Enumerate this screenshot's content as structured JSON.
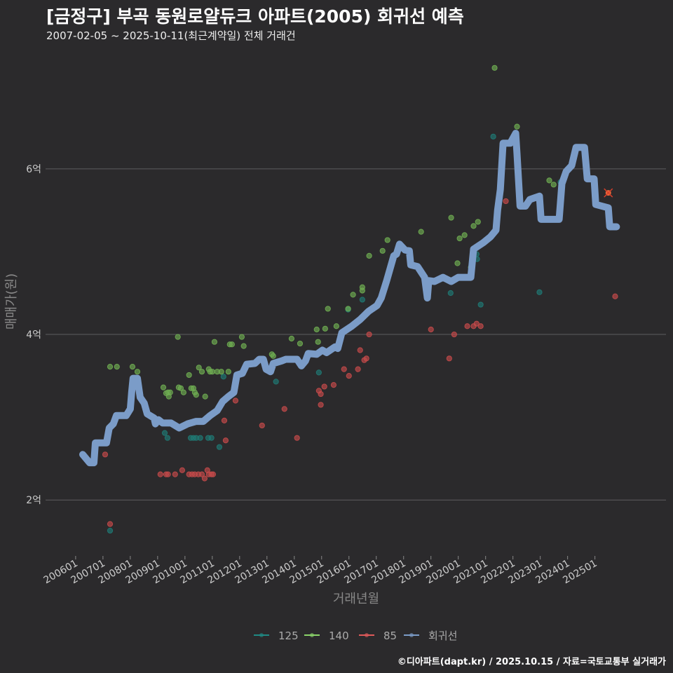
{
  "header": {
    "title": "[금정구] 부곡 동원로얄듀크 아파트(2005) 회귀선 예측",
    "subtitle": "2007-02-05 ~ 2025-10-11(최근계약일) 전체 거래건"
  },
  "caption": "©디아파트(dapt.kr) / 2025.10.15 / 자료=국토교통부 실거래가",
  "chart_data": {
    "type": "scatter",
    "xlabel": "거래년월",
    "ylabel": "매매가(원)",
    "xlim": [
      2004.9,
      2027.6
    ],
    "ylim": [
      1.35,
      7.32
    ],
    "x_ticks": [
      {
        "v": 2006,
        "label": "200601"
      },
      {
        "v": 2007,
        "label": "200701"
      },
      {
        "v": 2008,
        "label": "200801"
      },
      {
        "v": 2009,
        "label": "200901"
      },
      {
        "v": 2010,
        "label": "201001"
      },
      {
        "v": 2011,
        "label": "201101"
      },
      {
        "v": 2012,
        "label": "201201"
      },
      {
        "v": 2013,
        "label": "201301"
      },
      {
        "v": 2014,
        "label": "201401"
      },
      {
        "v": 2015,
        "label": "201501"
      },
      {
        "v": 2016,
        "label": "201601"
      },
      {
        "v": 2017,
        "label": "201701"
      },
      {
        "v": 2018,
        "label": "201801"
      },
      {
        "v": 2019,
        "label": "201901"
      },
      {
        "v": 2020,
        "label": "202001"
      },
      {
        "v": 2021,
        "label": "202101"
      },
      {
        "v": 2022,
        "label": "202201"
      },
      {
        "v": 2023,
        "label": "202301"
      },
      {
        "v": 2024,
        "label": "202401"
      },
      {
        "v": 2025,
        "label": "202501"
      }
    ],
    "y_ticks": [
      {
        "v": 2,
        "label": "2억"
      },
      {
        "v": 4,
        "label": "4억"
      },
      {
        "v": 6,
        "label": "6억"
      }
    ],
    "legend": {
      "placement": "bottom",
      "items": [
        {
          "label": "125",
          "color": "#1f8a84"
        },
        {
          "label": "140",
          "color": "#8bd46a"
        },
        {
          "label": "85",
          "color": "#e05a5a"
        },
        {
          "label": "회귀선",
          "color": "#7b9cc8"
        }
      ]
    },
    "series": [
      {
        "name": "125",
        "color": "#1f7a74",
        "points": [
          [
            2007.26,
            1.63
          ],
          [
            2009.26,
            2.81
          ],
          [
            2009.36,
            2.75
          ],
          [
            2010.21,
            2.75
          ],
          [
            2010.31,
            2.75
          ],
          [
            2010.41,
            2.75
          ],
          [
            2010.56,
            2.75
          ],
          [
            2010.85,
            2.75
          ],
          [
            2010.97,
            2.75
          ],
          [
            2011.26,
            2.64
          ],
          [
            2011.41,
            3.49
          ],
          [
            2013.33,
            3.43
          ],
          [
            2014.9,
            3.54
          ],
          [
            2015.97,
            4.3
          ],
          [
            2016.49,
            4.42
          ],
          [
            2019.72,
            4.5
          ],
          [
            2020.67,
            4.97
          ],
          [
            2020.69,
            4.91
          ],
          [
            2020.82,
            4.36
          ],
          [
            2021.28,
            6.39
          ],
          [
            2022.97,
            4.51
          ],
          [
            2023.74,
            5.84
          ]
        ]
      },
      {
        "name": "140",
        "color": "#6fae52",
        "points": [
          [
            2007.26,
            3.61
          ],
          [
            2007.51,
            3.61
          ],
          [
            2008.08,
            3.61
          ],
          [
            2008.26,
            3.55
          ],
          [
            2009.74,
            3.97
          ],
          [
            2009.21,
            3.36
          ],
          [
            2009.31,
            3.29
          ],
          [
            2009.38,
            3.3
          ],
          [
            2009.46,
            3.3
          ],
          [
            2009.41,
            3.25
          ],
          [
            2009.77,
            3.36
          ],
          [
            2009.85,
            3.35
          ],
          [
            2009.95,
            3.3
          ],
          [
            2010.15,
            3.51
          ],
          [
            2010.23,
            3.35
          ],
          [
            2010.31,
            3.35
          ],
          [
            2010.36,
            3.3
          ],
          [
            2010.41,
            3.27
          ],
          [
            2010.51,
            3.6
          ],
          [
            2010.62,
            3.55
          ],
          [
            2010.74,
            3.25
          ],
          [
            2010.87,
            3.58
          ],
          [
            2010.92,
            3.55
          ],
          [
            2011.0,
            3.55
          ],
          [
            2011.08,
            3.91
          ],
          [
            2011.18,
            3.55
          ],
          [
            2011.33,
            3.55
          ],
          [
            2011.59,
            3.55
          ],
          [
            2011.64,
            3.88
          ],
          [
            2011.72,
            3.88
          ],
          [
            2012.08,
            3.97
          ],
          [
            2012.15,
            3.86
          ],
          [
            2013.18,
            3.76
          ],
          [
            2013.23,
            3.74
          ],
          [
            2013.9,
            3.95
          ],
          [
            2014.21,
            3.89
          ],
          [
            2014.82,
            4.06
          ],
          [
            2014.87,
            3.91
          ],
          [
            2015.13,
            4.07
          ],
          [
            2015.23,
            4.31
          ],
          [
            2015.54,
            4.1
          ],
          [
            2015.97,
            4.31
          ],
          [
            2016.15,
            4.48
          ],
          [
            2016.49,
            4.57
          ],
          [
            2016.49,
            4.53
          ],
          [
            2016.74,
            4.95
          ],
          [
            2017.23,
            5.01
          ],
          [
            2017.41,
            5.14
          ],
          [
            2018.64,
            5.24
          ],
          [
            2019.74,
            5.41
          ],
          [
            2019.97,
            4.86
          ],
          [
            2020.05,
            5.16
          ],
          [
            2020.23,
            5.2
          ],
          [
            2020.46,
            4.81
          ],
          [
            2020.56,
            5.31
          ],
          [
            2020.72,
            5.36
          ],
          [
            2021.33,
            7.22
          ],
          [
            2022.15,
            6.51
          ],
          [
            2023.33,
            5.86
          ],
          [
            2023.49,
            5.81
          ]
        ]
      },
      {
        "name": "85",
        "color": "#c44a4a",
        "points": [
          [
            2007.08,
            2.55
          ],
          [
            2007.26,
            1.71
          ],
          [
            2009.1,
            2.31
          ],
          [
            2009.31,
            2.31
          ],
          [
            2009.38,
            2.31
          ],
          [
            2009.64,
            2.31
          ],
          [
            2009.9,
            2.36
          ],
          [
            2010.15,
            2.31
          ],
          [
            2010.26,
            2.31
          ],
          [
            2010.36,
            2.31
          ],
          [
            2010.49,
            2.31
          ],
          [
            2010.62,
            2.31
          ],
          [
            2010.72,
            2.26
          ],
          [
            2010.82,
            2.36
          ],
          [
            2010.87,
            2.31
          ],
          [
            2010.97,
            2.31
          ],
          [
            2011.03,
            2.31
          ],
          [
            2011.44,
            2.96
          ],
          [
            2011.49,
            2.72
          ],
          [
            2011.85,
            3.2
          ],
          [
            2012.82,
            2.9
          ],
          [
            2013.64,
            3.1
          ],
          [
            2014.1,
            2.75
          ],
          [
            2014.9,
            3.32
          ],
          [
            2014.97,
            3.28
          ],
          [
            2014.97,
            3.15
          ],
          [
            2015.1,
            3.37
          ],
          [
            2015.44,
            3.39
          ],
          [
            2015.82,
            3.58
          ],
          [
            2016.0,
            3.5
          ],
          [
            2016.33,
            3.58
          ],
          [
            2016.41,
            3.81
          ],
          [
            2016.56,
            3.69
          ],
          [
            2016.64,
            3.71
          ],
          [
            2016.74,
            4.0
          ],
          [
            2019.0,
            4.06
          ],
          [
            2019.67,
            3.71
          ],
          [
            2019.85,
            4.0
          ],
          [
            2020.33,
            4.1
          ],
          [
            2020.56,
            4.1
          ],
          [
            2020.67,
            4.13
          ],
          [
            2020.82,
            4.1
          ],
          [
            2021.74,
            5.61
          ],
          [
            2025.74,
            4.46
          ]
        ]
      }
    ],
    "latest_point": {
      "series": "85",
      "point": [
        2025.49,
        5.71
      ],
      "color": "#e8683a"
    },
    "regression": {
      "name": "회귀선",
      "color": "#7b9cc8",
      "points": [
        [
          2006.26,
          2.55
        ],
        [
          2006.51,
          2.45
        ],
        [
          2006.67,
          2.45
        ],
        [
          2006.72,
          2.69
        ],
        [
          2007.13,
          2.69
        ],
        [
          2007.23,
          2.87
        ],
        [
          2007.38,
          2.92
        ],
        [
          2007.49,
          3.02
        ],
        [
          2007.85,
          3.02
        ],
        [
          2008.0,
          3.1
        ],
        [
          2008.05,
          3.3
        ],
        [
          2008.1,
          3.47
        ],
        [
          2008.26,
          3.47
        ],
        [
          2008.36,
          3.24
        ],
        [
          2008.51,
          3.17
        ],
        [
          2008.62,
          3.04
        ],
        [
          2008.87,
          2.99
        ],
        [
          2008.92,
          2.92
        ],
        [
          2009.03,
          2.97
        ],
        [
          2009.18,
          2.93
        ],
        [
          2009.49,
          2.93
        ],
        [
          2009.79,
          2.87
        ],
        [
          2010.1,
          2.92
        ],
        [
          2010.41,
          2.95
        ],
        [
          2010.67,
          2.95
        ],
        [
          2010.92,
          3.02
        ],
        [
          2011.18,
          3.08
        ],
        [
          2011.38,
          3.19
        ],
        [
          2011.59,
          3.25
        ],
        [
          2011.79,
          3.3
        ],
        [
          2011.9,
          3.51
        ],
        [
          2012.1,
          3.53
        ],
        [
          2012.26,
          3.64
        ],
        [
          2012.56,
          3.65
        ],
        [
          2012.72,
          3.7
        ],
        [
          2012.87,
          3.7
        ],
        [
          2012.97,
          3.58
        ],
        [
          2013.13,
          3.55
        ],
        [
          2013.23,
          3.65
        ],
        [
          2013.54,
          3.68
        ],
        [
          2013.69,
          3.7
        ],
        [
          2014.1,
          3.7
        ],
        [
          2014.26,
          3.62
        ],
        [
          2014.41,
          3.68
        ],
        [
          2014.51,
          3.77
        ],
        [
          2014.82,
          3.76
        ],
        [
          2015.03,
          3.81
        ],
        [
          2015.18,
          3.78
        ],
        [
          2015.49,
          3.85
        ],
        [
          2015.59,
          3.83
        ],
        [
          2015.74,
          4.02
        ],
        [
          2016.1,
          4.1
        ],
        [
          2016.41,
          4.18
        ],
        [
          2016.72,
          4.28
        ],
        [
          2017.03,
          4.35
        ],
        [
          2017.18,
          4.44
        ],
        [
          2017.38,
          4.65
        ],
        [
          2017.64,
          4.95
        ],
        [
          2017.74,
          4.97
        ],
        [
          2017.85,
          5.09
        ],
        [
          2018.05,
          5.02
        ],
        [
          2018.21,
          5.01
        ],
        [
          2018.26,
          4.84
        ],
        [
          2018.51,
          4.82
        ],
        [
          2018.77,
          4.69
        ],
        [
          2018.87,
          4.44
        ],
        [
          2018.92,
          4.65
        ],
        [
          2019.13,
          4.64
        ],
        [
          2019.44,
          4.69
        ],
        [
          2019.74,
          4.64
        ],
        [
          2020.0,
          4.69
        ],
        [
          2020.46,
          4.69
        ],
        [
          2020.56,
          5.03
        ],
        [
          2020.92,
          5.11
        ],
        [
          2021.18,
          5.18
        ],
        [
          2021.38,
          5.26
        ],
        [
          2021.44,
          5.5
        ],
        [
          2021.54,
          5.75
        ],
        [
          2021.64,
          6.31
        ],
        [
          2021.9,
          6.31
        ],
        [
          2022.1,
          6.43
        ],
        [
          2022.15,
          6.18
        ],
        [
          2022.26,
          5.55
        ],
        [
          2022.46,
          5.55
        ],
        [
          2022.62,
          5.63
        ],
        [
          2022.97,
          5.67
        ],
        [
          2023.03,
          5.39
        ],
        [
          2023.69,
          5.39
        ],
        [
          2023.79,
          5.82
        ],
        [
          2023.95,
          5.97
        ],
        [
          2024.15,
          6.04
        ],
        [
          2024.31,
          6.26
        ],
        [
          2024.62,
          6.26
        ],
        [
          2024.72,
          5.88
        ],
        [
          2024.97,
          5.88
        ],
        [
          2025.03,
          5.57
        ],
        [
          2025.49,
          5.53
        ],
        [
          2025.54,
          5.3
        ],
        [
          2025.79,
          5.3
        ]
      ]
    }
  }
}
